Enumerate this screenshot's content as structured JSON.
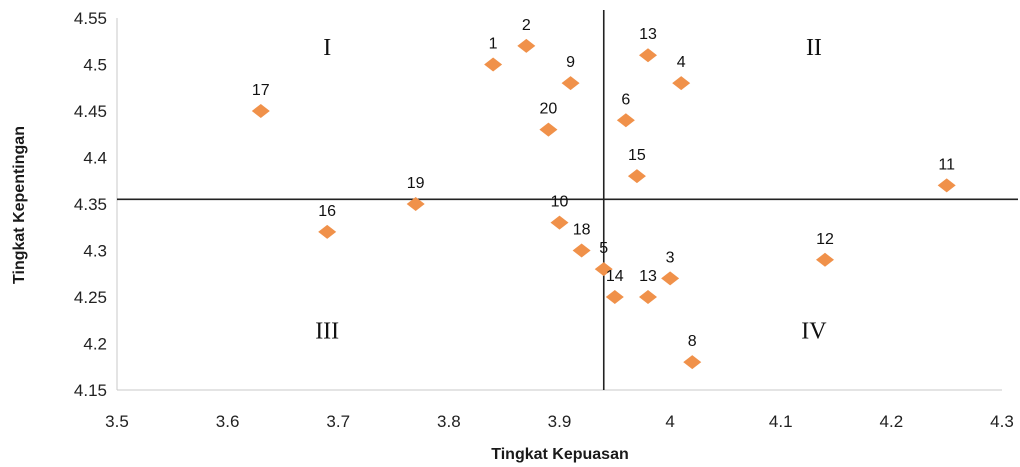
{
  "chart_data": {
    "type": "scatter",
    "xlabel": "Tingkat Kepuasan",
    "ylabel": "Tingkat Kepentingan",
    "xlim": [
      3.5,
      4.3
    ],
    "ylim": [
      4.15,
      4.55
    ],
    "x_ticks": [
      "3.5",
      "3.6",
      "3.7",
      "3.8",
      "3.9",
      "4",
      "4.1",
      "4.2",
      "4.3"
    ],
    "y_ticks": [
      "4.15",
      "4.2",
      "4.25",
      "4.3",
      "4.35",
      "4.4",
      "4.45",
      "4.5",
      "4.55"
    ],
    "divider_x": 3.94,
    "divider_y": 4.355,
    "marker_color": "#f0914a",
    "quadrants": [
      {
        "label": "I",
        "x": 3.69,
        "y": 4.52
      },
      {
        "label": "II",
        "x": 4.13,
        "y": 4.52
      },
      {
        "label": "III",
        "x": 3.69,
        "y": 4.215
      },
      {
        "label": "IV",
        "x": 4.13,
        "y": 4.215
      }
    ],
    "points": [
      {
        "label": "1",
        "x": 3.84,
        "y": 4.5
      },
      {
        "label": "2",
        "x": 3.87,
        "y": 4.52
      },
      {
        "label": "3",
        "x": 4.0,
        "y": 4.27
      },
      {
        "label": "4",
        "x": 4.01,
        "y": 4.48
      },
      {
        "label": "5",
        "x": 3.94,
        "y": 4.28
      },
      {
        "label": "6",
        "x": 3.96,
        "y": 4.44
      },
      {
        "label": "8",
        "x": 4.02,
        "y": 4.18
      },
      {
        "label": "9",
        "x": 3.91,
        "y": 4.48
      },
      {
        "label": "10",
        "x": 3.9,
        "y": 4.33
      },
      {
        "label": "11",
        "x": 4.25,
        "y": 4.37
      },
      {
        "label": "12",
        "x": 4.14,
        "y": 4.29
      },
      {
        "label": "13",
        "x": 3.98,
        "y": 4.51
      },
      {
        "label": "13",
        "x": 3.98,
        "y": 4.25
      },
      {
        "label": "14",
        "x": 3.95,
        "y": 4.25
      },
      {
        "label": "15",
        "x": 3.97,
        "y": 4.38
      },
      {
        "label": "16",
        "x": 3.69,
        "y": 4.32
      },
      {
        "label": "17",
        "x": 3.63,
        "y": 4.45
      },
      {
        "label": "18",
        "x": 3.92,
        "y": 4.3
      },
      {
        "label": "19",
        "x": 3.77,
        "y": 4.35
      },
      {
        "label": "20",
        "x": 3.89,
        "y": 4.43
      }
    ]
  }
}
